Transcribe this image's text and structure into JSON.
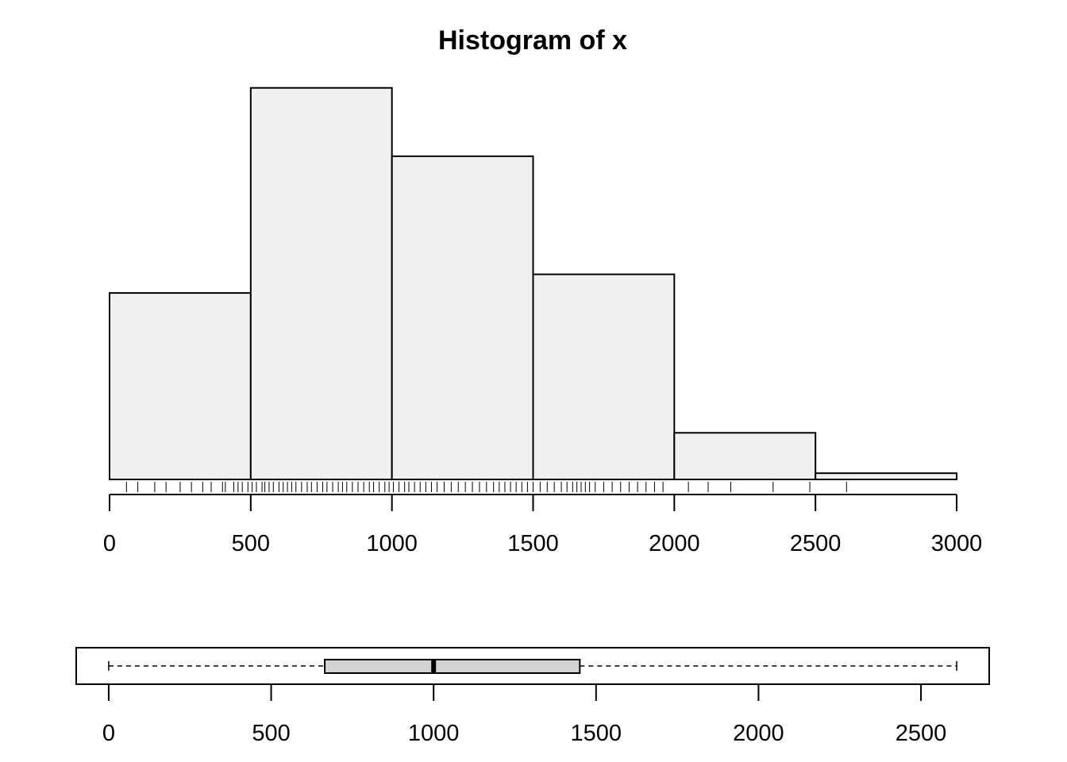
{
  "chart_data": [
    {
      "type": "bar",
      "subtype": "histogram",
      "title": "Histogram of x",
      "xlabel": "",
      "ylabel": "",
      "bins": [
        {
          "start": 0,
          "end": 500,
          "count": 30
        },
        {
          "start": 500,
          "end": 1000,
          "count": 63
        },
        {
          "start": 1000,
          "end": 1500,
          "count": 52
        },
        {
          "start": 1500,
          "end": 2000,
          "count": 33
        },
        {
          "start": 2000,
          "end": 2500,
          "count": 7.5
        },
        {
          "start": 2500,
          "end": 3000,
          "count": 1
        }
      ],
      "xlim": [
        0,
        3000
      ],
      "x_ticks": [
        0,
        500,
        1000,
        1500,
        2000,
        2500,
        3000
      ],
      "x_tick_labels": [
        "0",
        "500",
        "1000",
        "1500",
        "2000",
        "2500",
        "3000"
      ],
      "y_axis_shown": false,
      "rug": [
        60,
        100,
        160,
        200,
        250,
        290,
        330,
        360,
        400,
        410,
        440,
        455,
        470,
        490,
        505,
        520,
        540,
        550,
        565,
        580,
        600,
        615,
        630,
        645,
        660,
        680,
        700,
        715,
        735,
        755,
        770,
        790,
        810,
        825,
        840,
        860,
        880,
        900,
        920,
        935,
        955,
        975,
        990,
        1005,
        1025,
        1045,
        1060,
        1080,
        1100,
        1120,
        1140,
        1160,
        1185,
        1210,
        1235,
        1260,
        1285,
        1310,
        1335,
        1360,
        1380,
        1400,
        1420,
        1440,
        1460,
        1480,
        1500,
        1525,
        1550,
        1575,
        1600,
        1620,
        1640,
        1655,
        1670,
        1685,
        1700,
        1720,
        1750,
        1780,
        1810,
        1840,
        1870,
        1900,
        1930,
        1960,
        2050,
        2120,
        2200,
        2350,
        2480,
        2610
      ]
    },
    {
      "type": "boxplot",
      "orientation": "horizontal",
      "min": 0,
      "q1": 665,
      "median": 1000,
      "q3": 1450,
      "max": 2610,
      "xlim": [
        -100,
        2710
      ],
      "x_ticks": [
        0,
        500,
        1000,
        1500,
        2000,
        2500
      ],
      "x_tick_labels": [
        "0",
        "500",
        "1000",
        "1500",
        "2000",
        "2500"
      ]
    }
  ]
}
